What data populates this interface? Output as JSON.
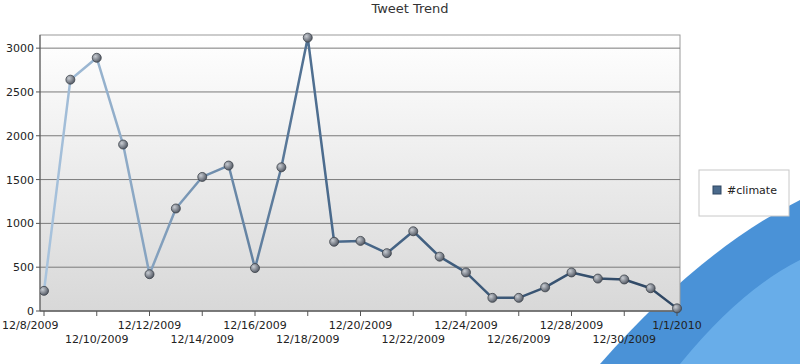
{
  "chart_data": {
    "type": "line",
    "title": "Tweet Trend",
    "categories": [
      "12/8/2009",
      null,
      "12/10/2009",
      null,
      "12/12/2009",
      null,
      "12/14/2009",
      null,
      "12/16/2009",
      null,
      "12/18/2009",
      null,
      "12/20/2009",
      null,
      "12/22/2009",
      null,
      "12/24/2009",
      null,
      "12/26/2009",
      null,
      "12/28/2009",
      null,
      "12/30/2009",
      null,
      "1/1/2010"
    ],
    "series": [
      {
        "name": "#climate",
        "color": "#4a6a8c",
        "marker": "circle",
        "values": [
          230,
          2640,
          2890,
          1900,
          420,
          1170,
          1530,
          1660,
          490,
          1640,
          3120,
          790,
          800,
          660,
          910,
          620,
          440,
          150,
          150,
          270,
          440,
          370,
          360,
          260,
          30
        ]
      }
    ],
    "ylim": [
      0,
      3150
    ],
    "yticks": [
      0,
      500,
      1000,
      1500,
      2000,
      2500,
      3000
    ],
    "grid": true,
    "legend": "right"
  }
}
